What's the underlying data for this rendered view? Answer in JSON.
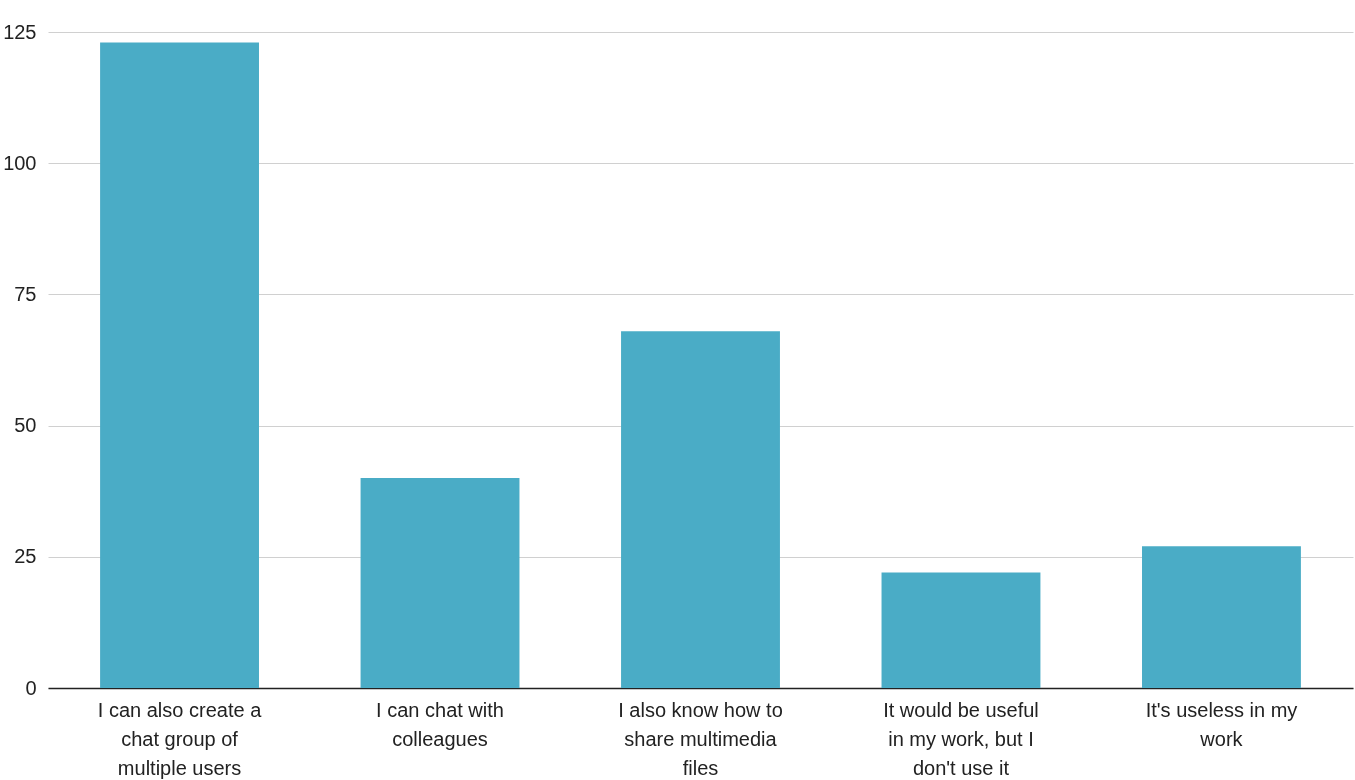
{
  "chart_data": {
    "type": "bar",
    "categories": [
      "I can also create a chat group of multiple users",
      "I can chat with colleagues",
      "I also know how to share multimedia files",
      "It would be useful in my work, but I don't use it",
      "It's useless in my work"
    ],
    "values": [
      123,
      40,
      68,
      22,
      27
    ],
    "color": "#4aacc6",
    "ylim": [
      0,
      125
    ],
    "yticks": [
      0,
      25,
      50,
      75,
      100,
      125
    ],
    "grid": "y"
  }
}
